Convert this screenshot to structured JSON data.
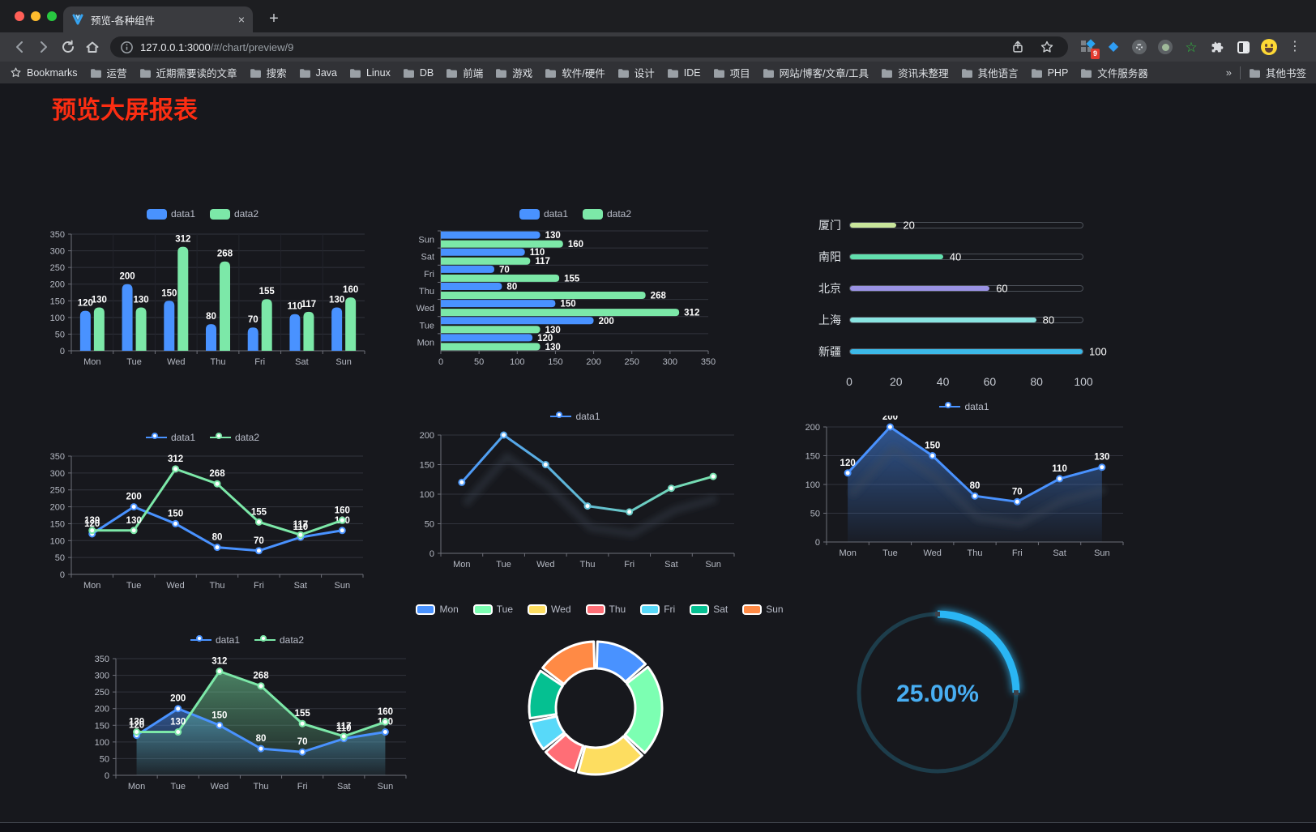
{
  "browser": {
    "tab_title": "预览-各种组件",
    "tab_close": "×",
    "new_tab_button": "+",
    "url_host": "127.0.0.1:3000",
    "url_path": "/#/chart/preview/9",
    "bookmarks_label": "Bookmarks",
    "bookmarks": [
      "运营",
      "近期需要读的文章",
      "搜索",
      "Java",
      "Linux",
      "DB",
      "前端",
      "游戏",
      "软件/硬件",
      "设计",
      "IDE",
      "项目",
      "网站/博客/文章/工具",
      "资讯未整理",
      "其他语言",
      "PHP",
      "文件服务器"
    ],
    "overflow_chevron": "»",
    "other_bookmarks": "其他书签",
    "extension_badge": "9",
    "extensions": [
      "screenshot-grid",
      "gem",
      "settings-wheel",
      "record-dot",
      "user-script-star",
      "puzzle",
      "split-contrast",
      "profile-emoji",
      "kebab-menu"
    ],
    "toolbar_icons": [
      "back-icon",
      "forward-icon",
      "reload-icon",
      "home-icon",
      "info-icon",
      "share-icon",
      "star-icon"
    ]
  },
  "page": {
    "title": "预览大屏报表",
    "title_color": "#fb2d12"
  },
  "chart_data": [
    {
      "id": "c1",
      "type": "bar",
      "categories": [
        "Mon",
        "Tue",
        "Wed",
        "Thu",
        "Fri",
        "Sat",
        "Sun"
      ],
      "series": [
        {
          "name": "data1",
          "color": "#4992ff",
          "values": [
            120,
            200,
            150,
            80,
            70,
            110,
            130
          ]
        },
        {
          "name": "data2",
          "color": "#7ce8a8",
          "values": [
            130,
            130,
            312,
            268,
            155,
            117,
            160
          ]
        }
      ],
      "legend": [
        "data1",
        "data2"
      ],
      "legend_position": "top",
      "ylim": [
        0,
        350
      ],
      "ytick": 50,
      "labels": true,
      "grid": true
    },
    {
      "id": "c2",
      "type": "bar-horizontal",
      "categories": [
        "Mon",
        "Tue",
        "Wed",
        "Thu",
        "Fri",
        "Sat",
        "Sun"
      ],
      "series": [
        {
          "name": "data1",
          "color": "#4992ff",
          "values": [
            120,
            200,
            150,
            80,
            70,
            110,
            130
          ]
        },
        {
          "name": "data2",
          "color": "#7ce8a8",
          "values": [
            130,
            130,
            312,
            268,
            155,
            117,
            160
          ]
        }
      ],
      "legend": [
        "data1",
        "data2"
      ],
      "legend_position": "top",
      "xlim": [
        0,
        350
      ],
      "xtick": 50,
      "labels": true,
      "grid": true
    },
    {
      "id": "c3",
      "type": "progress",
      "max": 100,
      "items": [
        {
          "label": "厦门",
          "value": 20,
          "color": "#c9e69b"
        },
        {
          "label": "南阳",
          "value": 40,
          "color": "#62dfae"
        },
        {
          "label": "北京",
          "value": 60,
          "color": "#9a92e3"
        },
        {
          "label": "上海",
          "value": 80,
          "color": "#89e4e1"
        },
        {
          "label": "新疆",
          "value": 100,
          "color": "#3cb9e8"
        }
      ],
      "axis_ticks": [
        0,
        20,
        40,
        60,
        80,
        100
      ]
    },
    {
      "id": "c4",
      "type": "line",
      "categories": [
        "Mon",
        "Tue",
        "Wed",
        "Thu",
        "Fri",
        "Sat",
        "Sun"
      ],
      "series": [
        {
          "name": "data1",
          "color": "#4992ff",
          "values": [
            120,
            200,
            150,
            80,
            70,
            110,
            130
          ]
        },
        {
          "name": "data2",
          "color": "#7ce8a8",
          "values": [
            130,
            130,
            312,
            268,
            155,
            117,
            160
          ]
        }
      ],
      "legend": [
        "data1",
        "data2"
      ],
      "legend_position": "top",
      "ylim": [
        0,
        350
      ],
      "ytick": 50,
      "labels": true,
      "grid": true
    },
    {
      "id": "c5",
      "type": "line",
      "categories": [
        "Mon",
        "Tue",
        "Wed",
        "Thu",
        "Fri",
        "Sat",
        "Sun"
      ],
      "series": [
        {
          "name": "data1",
          "gradient": [
            "#4992ff",
            "#7ce8a8"
          ],
          "values": [
            120,
            200,
            150,
            80,
            70,
            110,
            130
          ],
          "shadow": true
        }
      ],
      "legend": [
        "data1"
      ],
      "legend_position": "top",
      "ylim": [
        0,
        200
      ],
      "ytick": 50,
      "labels": false,
      "grid": true
    },
    {
      "id": "c6",
      "type": "line",
      "categories": [
        "Mon",
        "Tue",
        "Wed",
        "Thu",
        "Fri",
        "Sat",
        "Sun"
      ],
      "series": [
        {
          "name": "data1",
          "color": "#4992ff",
          "values": [
            120,
            200,
            150,
            80,
            70,
            110,
            130
          ],
          "area": true,
          "shadow": true
        }
      ],
      "legend": [
        "data1"
      ],
      "legend_position": "top",
      "ylim": [
        0,
        200
      ],
      "ytick": 50,
      "labels": true,
      "grid": true
    },
    {
      "id": "c7",
      "type": "line",
      "categories": [
        "Mon",
        "Tue",
        "Wed",
        "Thu",
        "Fri",
        "Sat",
        "Sun"
      ],
      "series": [
        {
          "name": "data1",
          "color": "#4992ff",
          "values": [
            120,
            200,
            150,
            80,
            70,
            110,
            130
          ],
          "area": true
        },
        {
          "name": "data2",
          "color": "#7ce8a8",
          "values": [
            130,
            130,
            312,
            268,
            155,
            117,
            160
          ],
          "area": true
        }
      ],
      "legend": [
        "data1",
        "data2"
      ],
      "legend_position": "top",
      "ylim": [
        0,
        350
      ],
      "ytick": 50,
      "labels": true,
      "grid": true
    },
    {
      "id": "c8",
      "type": "pie",
      "donut": true,
      "categories": [
        "Mon",
        "Tue",
        "Wed",
        "Thu",
        "Fri",
        "Sat",
        "Sun"
      ],
      "values": [
        120,
        200,
        150,
        80,
        70,
        110,
        130
      ],
      "colors": [
        "#4992ff",
        "#7cffb2",
        "#fddd60",
        "#ff6e76",
        "#58d9f9",
        "#05c091",
        "#ff8a45"
      ],
      "legend": [
        "Mon",
        "Tue",
        "Wed",
        "Thu",
        "Fri",
        "Sat",
        "Sun"
      ],
      "legend_position": "top",
      "border_color": "#ffffff"
    },
    {
      "id": "c9",
      "type": "gauge",
      "value": 25,
      "max": 100,
      "display": "25.00%",
      "color": "#2ab6f4",
      "track_color": "#1d3d4b",
      "text_color": "#48aef2"
    }
  ]
}
